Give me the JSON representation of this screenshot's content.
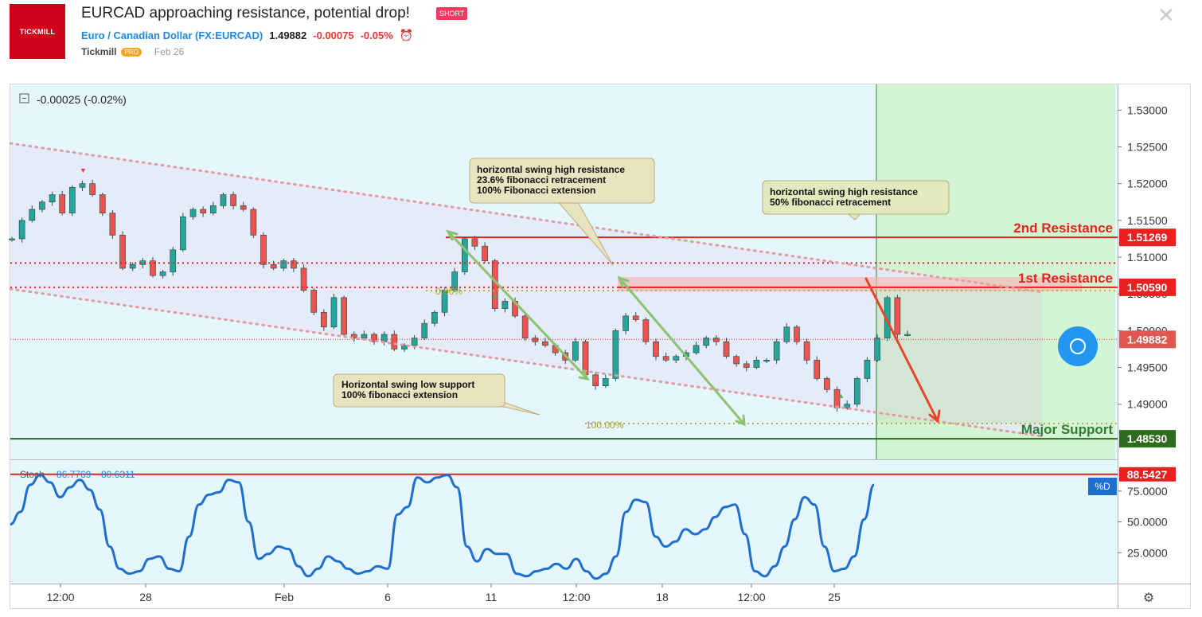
{
  "header": {
    "logo_text": "TICKMILL",
    "title": "EURCAD approaching resistance, potential drop!",
    "badge": "SHORT",
    "symbol_name": "Euro / Canadian Dollar (FX:EURCAD)",
    "price": "1.49882",
    "change": "-0.00075",
    "change_pct": "-0.05%",
    "author": "Tickmill",
    "author_tag": "PRO",
    "date": "Feb 26"
  },
  "chart_data": {
    "type": "candlestick",
    "symbol": "EURCAD",
    "chart_change_label": "-0.00025 (-0.02%)",
    "y_ticks": [
      "1.53000",
      "1.52500",
      "1.52000",
      "1.51500",
      "1.51000",
      "1.50500",
      "1.50000",
      "1.49500",
      "1.49000"
    ],
    "ylim": [
      1.4825,
      1.5335
    ],
    "x_ticks": [
      "12:00",
      "28",
      "Feb",
      "6",
      "11",
      "12:00",
      "18",
      "12:00",
      "25"
    ],
    "close_series": [
      1.5125,
      1.515,
      1.5165,
      1.5175,
      1.5185,
      1.516,
      1.5195,
      1.52,
      1.5185,
      1.516,
      1.513,
      1.5085,
      1.509,
      1.5095,
      1.5075,
      1.508,
      1.511,
      1.5155,
      1.5165,
      1.516,
      1.517,
      1.5185,
      1.517,
      1.5165,
      1.513,
      1.509,
      1.5085,
      1.5095,
      1.5085,
      1.5055,
      1.5025,
      1.5005,
      1.5045,
      1.4995,
      1.499,
      1.4995,
      1.4985,
      1.4995,
      1.4975,
      1.498,
      1.499,
      1.501,
      1.5025,
      1.5055,
      1.508,
      1.5125,
      1.5115,
      1.5095,
      1.503,
      1.504,
      1.502,
      1.499,
      1.4985,
      1.498,
      1.497,
      1.496,
      1.4985,
      1.494,
      1.4925,
      1.4935,
      1.5,
      1.502,
      1.5015,
      1.4985,
      1.4965,
      1.496,
      1.4965,
      1.497,
      1.498,
      1.499,
      1.4985,
      1.4965,
      1.4955,
      1.495,
      1.496,
      1.496,
      1.4985,
      1.5005,
      1.4985,
      1.496,
      1.4935,
      1.492,
      1.4895,
      1.49,
      1.4935,
      1.496,
      1.499,
      1.5045,
      1.4995,
      1.4995
    ],
    "horizontal_levels": [
      {
        "label": "2nd Resistance",
        "price": "1.51269",
        "value": 1.51269,
        "color": "#e8201e"
      },
      {
        "label": "1st Resistance",
        "price": "1.50590",
        "value": 1.5059,
        "color": "#e8201e"
      },
      {
        "label": "Major Support",
        "price": "1.48530",
        "value": 1.4853,
        "color": "#2e7d32"
      }
    ],
    "current_price": {
      "price": "1.49882",
      "value": 1.49882
    },
    "dotted_resistance": 1.5092,
    "fib_labels": [
      "0.00%",
      "100.00%"
    ],
    "annotations": [
      {
        "lines": [
          "horizontal swing high resistance",
          "23.6% fibonacci retracement",
          "100% Fibonacci extension"
        ]
      },
      {
        "lines": [
          "horizontal swing high resistance",
          "50% fibonacci retracement"
        ]
      },
      {
        "lines": [
          "Horizontal swing low support",
          "100% fibonacci extension"
        ]
      }
    ],
    "stochastic": {
      "label": "Stoch",
      "k_value": "86.7769",
      "d_value": "80.6311",
      "ylim": [
        0,
        100
      ],
      "y_ticks": [
        "75.0000",
        "50.0000",
        "25.0000"
      ],
      "overbought_label": "88.5427",
      "overbought": 88.5427,
      "d_tag": "%D",
      "values": [
        48,
        58,
        80,
        88,
        82,
        70,
        78,
        84,
        76,
        60,
        30,
        12,
        8,
        10,
        20,
        22,
        12,
        10,
        38,
        64,
        72,
        74,
        84,
        82,
        50,
        20,
        24,
        30,
        28,
        14,
        6,
        12,
        22,
        18,
        12,
        8,
        10,
        14,
        12,
        56,
        62,
        86,
        82,
        86,
        88,
        78,
        30,
        18,
        28,
        24,
        24,
        8,
        6,
        10,
        12,
        16,
        12,
        20,
        10,
        4,
        8,
        22,
        58,
        68,
        66,
        38,
        30,
        34,
        44,
        40,
        44,
        54,
        62,
        64,
        40,
        10,
        6,
        14,
        30,
        52,
        70,
        64,
        30,
        10,
        12,
        22,
        52,
        80
      ]
    }
  }
}
